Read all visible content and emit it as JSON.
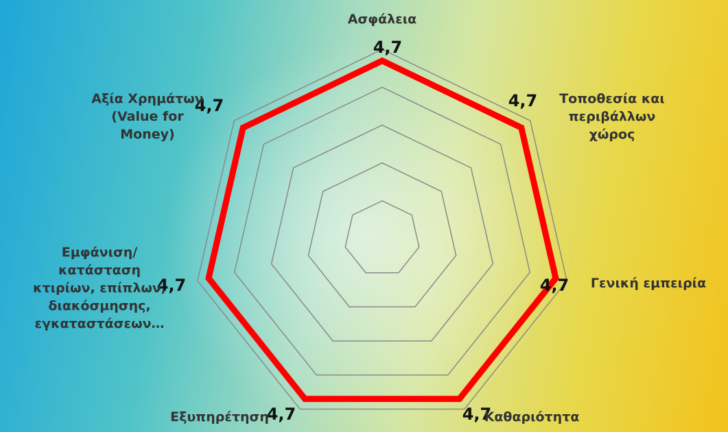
{
  "chart_data": {
    "type": "radar",
    "categories": [
      "Ασφάλεια",
      "Τοποθεσία και\nπεριβάλλων\nχώρος",
      "Γενική εμπειρία",
      "Καθαριότητα",
      "Εξυπηρέτηση",
      "Εμφάνιση/\nκατάσταση\nκτιρίων, επίπλων,\nδιακόσμησης,\nεγκαταστάσεων…",
      "Αξία Χρημάτων\n(Value for\nMoney)"
    ],
    "values": [
      4.7,
      4.7,
      4.7,
      4.7,
      4.7,
      4.7,
      4.7
    ],
    "value_labels": [
      "4,7",
      "4,7",
      "4,7",
      "4,7",
      "4,7",
      "4,7",
      "4,7"
    ],
    "color": "#ff0000",
    "ylim": [
      0,
      5
    ],
    "yticks": [
      1,
      2,
      3,
      4,
      5
    ],
    "grid": true
  }
}
